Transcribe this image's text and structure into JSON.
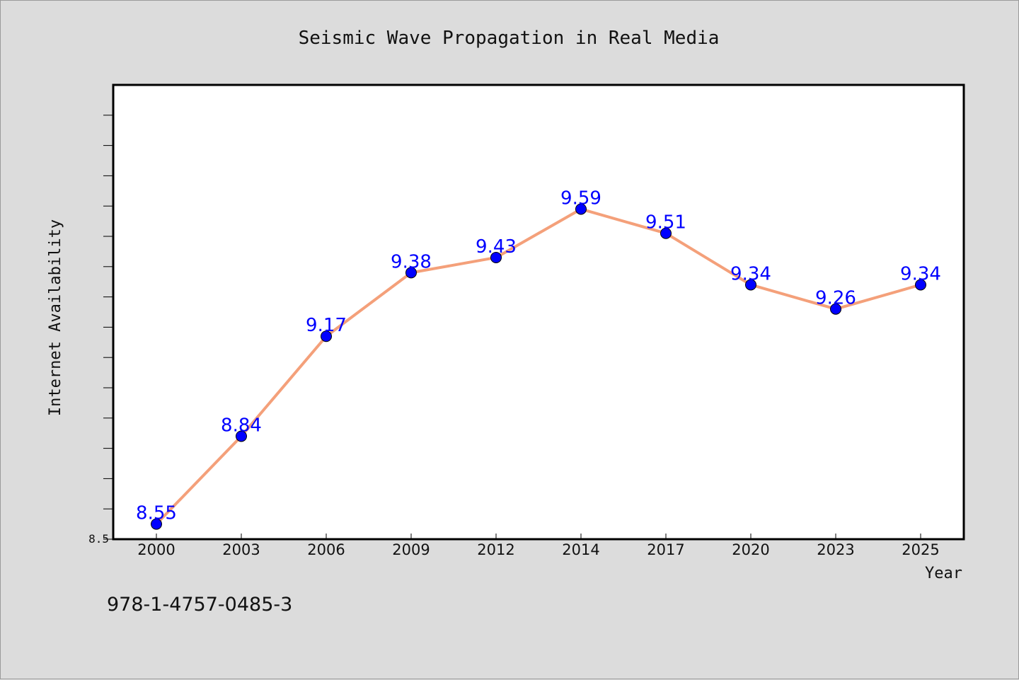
{
  "chart_data": {
    "type": "line",
    "title": "Seismic Wave Propagation in Real Media",
    "xlabel": "Year",
    "ylabel": "Internet Availability",
    "categories": [
      "2000",
      "2003",
      "2006",
      "2009",
      "2012",
      "2014",
      "2017",
      "2020",
      "2023",
      "2025"
    ],
    "series": [
      {
        "values": [
          8.55,
          8.84,
          9.17,
          9.38,
          9.43,
          9.59,
          9.51,
          9.34,
          9.26,
          9.34
        ],
        "labels": [
          "8.55",
          "8.84",
          "9.17",
          "9.38",
          "9.43",
          "9.59",
          "9.51",
          "9.34",
          "9.26",
          "9.34"
        ],
        "line_color": "#f4a07a",
        "marker_color": "#0000ff"
      }
    ],
    "ylim": [
      8.5,
      10.0
    ],
    "yticks_labeled": [
      "8.5"
    ],
    "grid": false,
    "legend": "none"
  },
  "footer": {
    "isbn": "978-1-4757-0485-3"
  },
  "colors": {
    "background": "#dcdcdc",
    "plot_background": "#ffffff",
    "line": "#f4a07a",
    "marker": "#0000ff",
    "data_label": "#0000ff"
  }
}
